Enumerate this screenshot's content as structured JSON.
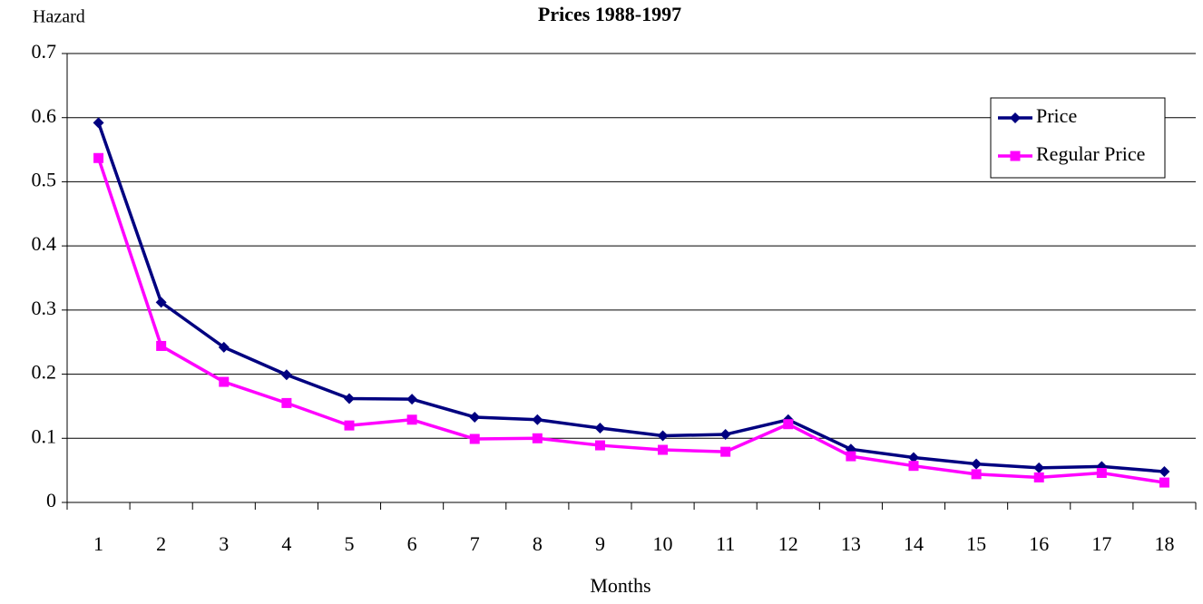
{
  "chart_data": {
    "type": "line",
    "title": "Prices 1988-1997",
    "y_label": "Hazard",
    "x_label": "Months",
    "categories": [
      1,
      2,
      3,
      4,
      5,
      6,
      7,
      8,
      9,
      10,
      11,
      12,
      13,
      14,
      15,
      16,
      17,
      18
    ],
    "series": [
      {
        "name": "Price",
        "color": "#000080",
        "marker": "diamond",
        "values": [
          0.592,
          0.312,
          0.242,
          0.199,
          0.162,
          0.161,
          0.133,
          0.129,
          0.116,
          0.104,
          0.106,
          0.129,
          0.083,
          0.07,
          0.06,
          0.054,
          0.056,
          0.048
        ]
      },
      {
        "name": "Regular Price",
        "color": "#ff00ff",
        "marker": "square",
        "values": [
          0.537,
          0.244,
          0.188,
          0.155,
          0.12,
          0.129,
          0.099,
          0.1,
          0.089,
          0.082,
          0.079,
          0.122,
          0.072,
          0.057,
          0.044,
          0.039,
          0.046,
          0.031
        ]
      }
    ],
    "ylim": [
      0,
      0.7
    ],
    "yticks": [
      0,
      0.1,
      0.2,
      0.3,
      0.4,
      0.5,
      0.6,
      0.7
    ],
    "grid": true,
    "legend": "upper-right"
  }
}
